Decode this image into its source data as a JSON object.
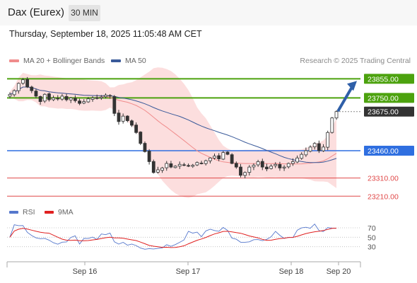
{
  "header": {
    "title": "Dax (Eurex)",
    "timeframe": "30 MIN"
  },
  "timestamp": "Thursday, September 18, 2025 11:05:48 AM CET",
  "legend": {
    "bollinger": {
      "label": "MA 20 + Bollinger Bands",
      "color": "#f08c8c"
    },
    "ma50": {
      "label": "MA 50",
      "color": "#3a5a9a"
    }
  },
  "copyright": "Research © 2025 Trading Central",
  "sub_legend": {
    "rsi": {
      "label": "RSI",
      "color": "#5577cc"
    },
    "ma9": {
      "label": "9MA",
      "color": "#e02020"
    }
  },
  "chart_data": [
    {
      "type": "candlestick",
      "price_range": [
        23180,
        23915
      ],
      "x_labels": [
        "Sep 16",
        "Sep 17",
        "Sep 18",
        "Sep 20"
      ],
      "levels": [
        {
          "value": 23855,
          "label": "23855.00",
          "kind": "resistance",
          "color": "#4ca20e"
        },
        {
          "value": 23750,
          "label": "23750.00",
          "kind": "resistance",
          "color": "#4ca20e"
        },
        {
          "value": 23675,
          "label": "23675.00",
          "kind": "last",
          "color": "#333333"
        },
        {
          "value": 23460,
          "label": "23460.00",
          "kind": "pivot",
          "color": "#2f6fe0"
        },
        {
          "value": 23310,
          "label": "23310.00",
          "kind": "support",
          "color": "#e04848"
        },
        {
          "value": 23210,
          "label": "23210.00",
          "kind": "support",
          "color": "#e04848"
        }
      ],
      "close_series": [
        23770,
        23790,
        23830,
        23850,
        23810,
        23790,
        23760,
        23730,
        23770,
        23740,
        23750,
        23745,
        23760,
        23740,
        23750,
        23735,
        23720,
        23730,
        23745,
        23750,
        23750,
        23755,
        23765,
        23760,
        23665,
        23620,
        23650,
        23625,
        23600,
        23560,
        23500,
        23455,
        23400,
        23340,
        23355,
        23365,
        23390,
        23370,
        23375,
        23385,
        23380,
        23375,
        23380,
        23395,
        23390,
        23405,
        23420,
        23430,
        23415,
        23450,
        23440,
        23390,
        23370,
        23325,
        23340,
        23370,
        23380,
        23400,
        23370,
        23360,
        23375,
        23385,
        23365,
        23370,
        23390,
        23400,
        23420,
        23440,
        23460,
        23480,
        23500,
        23460,
        23480,
        23560,
        23640,
        23675
      ]
    },
    {
      "type": "line",
      "name": "RSI",
      "ylim": [
        10,
        85
      ],
      "y_ticks": [
        70,
        50,
        30
      ],
      "series_names": [
        "RSI",
        "9MA"
      ]
    }
  ]
}
